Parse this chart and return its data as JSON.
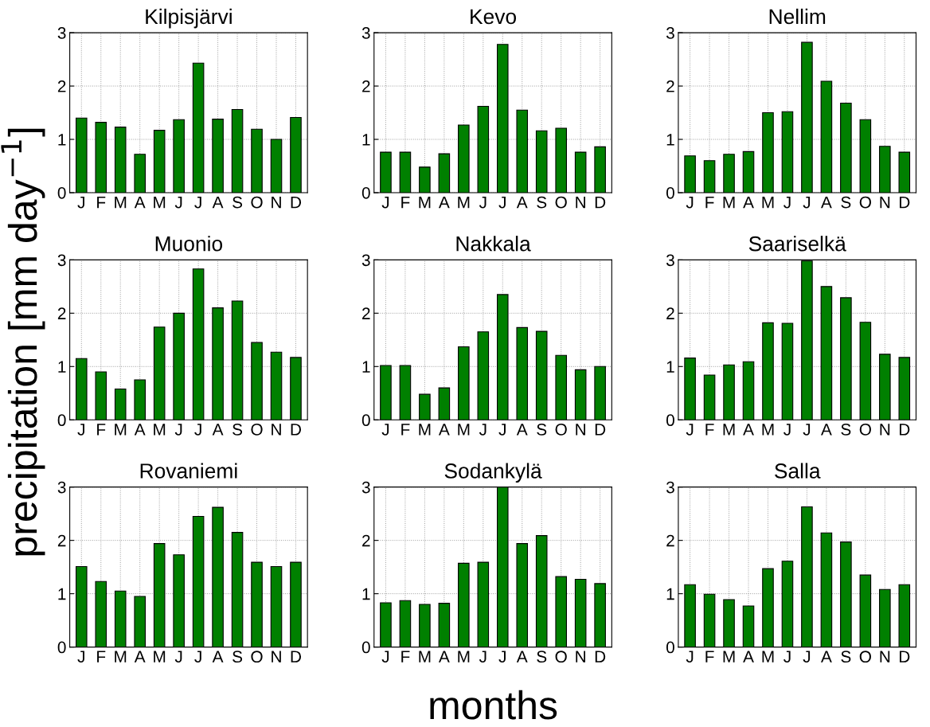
{
  "chart_data": [
    {
      "type": "bar",
      "title": "Kilpisjärvi",
      "categories": [
        "J",
        "F",
        "M",
        "A",
        "M",
        "J",
        "J",
        "A",
        "S",
        "O",
        "N",
        "D"
      ],
      "values": [
        1.4,
        1.32,
        1.23,
        0.72,
        1.17,
        1.37,
        2.43,
        1.38,
        1.56,
        1.19,
        1.0,
        1.41
      ],
      "color": "#008000",
      "ylim": [
        0,
        3
      ],
      "yticks": [
        0,
        1,
        2,
        3
      ],
      "grid": true
    },
    {
      "type": "bar",
      "title": "Kevo",
      "categories": [
        "J",
        "F",
        "M",
        "A",
        "M",
        "J",
        "J",
        "A",
        "S",
        "O",
        "N",
        "D"
      ],
      "values": [
        0.76,
        0.76,
        0.48,
        0.73,
        1.27,
        1.62,
        2.78,
        1.55,
        1.16,
        1.21,
        0.76,
        0.86
      ],
      "color": "#008000",
      "ylim": [
        0,
        3
      ],
      "yticks": [
        0,
        1,
        2,
        3
      ],
      "grid": true
    },
    {
      "type": "bar",
      "title": "Nellim",
      "categories": [
        "J",
        "F",
        "M",
        "A",
        "M",
        "J",
        "J",
        "A",
        "S",
        "O",
        "N",
        "D"
      ],
      "values": [
        0.69,
        0.6,
        0.72,
        0.77,
        1.5,
        1.52,
        2.82,
        2.09,
        1.68,
        1.37,
        0.87,
        0.76
      ],
      "color": "#008000",
      "ylim": [
        0,
        3
      ],
      "yticks": [
        0,
        1,
        2,
        3
      ],
      "grid": true
    },
    {
      "type": "bar",
      "title": "Muonio",
      "ylabel": "precipitation [mm day$^{−1}$]",
      "categories": [
        "J",
        "F",
        "M",
        "A",
        "M",
        "J",
        "J",
        "A",
        "S",
        "O",
        "N",
        "D"
      ],
      "values": [
        1.15,
        0.9,
        0.58,
        0.75,
        1.74,
        2.0,
        2.83,
        2.1,
        2.23,
        1.45,
        1.27,
        1.17
      ],
      "color": "#008000",
      "ylim": [
        0,
        3
      ],
      "yticks": [
        0,
        1,
        2,
        3
      ],
      "grid": true
    },
    {
      "type": "bar",
      "title": "Nakkala",
      "categories": [
        "J",
        "F",
        "M",
        "A",
        "M",
        "J",
        "J",
        "A",
        "S",
        "O",
        "N",
        "D"
      ],
      "values": [
        1.02,
        1.02,
        0.48,
        0.6,
        1.37,
        1.65,
        2.35,
        1.73,
        1.66,
        1.21,
        0.94,
        1.0
      ],
      "color": "#008000",
      "ylim": [
        0,
        3
      ],
      "yticks": [
        0,
        1,
        2,
        3
      ],
      "grid": true
    },
    {
      "type": "bar",
      "title": "Saariselkä",
      "categories": [
        "J",
        "F",
        "M",
        "A",
        "M",
        "J",
        "J",
        "A",
        "S",
        "O",
        "N",
        "D"
      ],
      "values": [
        1.16,
        0.84,
        1.03,
        1.09,
        1.82,
        1.81,
        2.98,
        2.5,
        2.29,
        1.83,
        1.23,
        1.17
      ],
      "color": "#008000",
      "ylim": [
        0,
        3
      ],
      "yticks": [
        0,
        1,
        2,
        3
      ],
      "grid": true
    },
    {
      "type": "bar",
      "title": "Rovaniemi",
      "categories": [
        "J",
        "F",
        "M",
        "A",
        "M",
        "J",
        "J",
        "A",
        "S",
        "O",
        "N",
        "D"
      ],
      "values": [
        1.51,
        1.23,
        1.05,
        0.95,
        1.94,
        1.73,
        2.45,
        2.62,
        2.15,
        1.59,
        1.51,
        1.59
      ],
      "color": "#008000",
      "ylim": [
        0,
        3
      ],
      "yticks": [
        0,
        1,
        2,
        3
      ],
      "grid": true
    },
    {
      "type": "bar",
      "title": "Sodankylä",
      "xlabel": "months",
      "categories": [
        "J",
        "F",
        "M",
        "A",
        "M",
        "J",
        "J",
        "A",
        "S",
        "O",
        "N",
        "D"
      ],
      "values": [
        0.83,
        0.87,
        0.8,
        0.82,
        1.57,
        1.59,
        3.0,
        1.94,
        2.09,
        1.32,
        1.27,
        1.19
      ],
      "color": "#008000",
      "ylim": [
        0,
        3
      ],
      "yticks": [
        0,
        1,
        2,
        3
      ],
      "grid": true
    },
    {
      "type": "bar",
      "title": "Salla",
      "categories": [
        "J",
        "F",
        "M",
        "A",
        "M",
        "J",
        "J",
        "A",
        "S",
        "O",
        "N",
        "D"
      ],
      "values": [
        1.17,
        0.99,
        0.89,
        0.77,
        1.47,
        1.61,
        2.63,
        2.14,
        1.97,
        1.35,
        1.08,
        1.17
      ],
      "color": "#008000",
      "ylim": [
        0,
        3
      ],
      "yticks": [
        0,
        1,
        2,
        3
      ],
      "grid": true
    }
  ]
}
